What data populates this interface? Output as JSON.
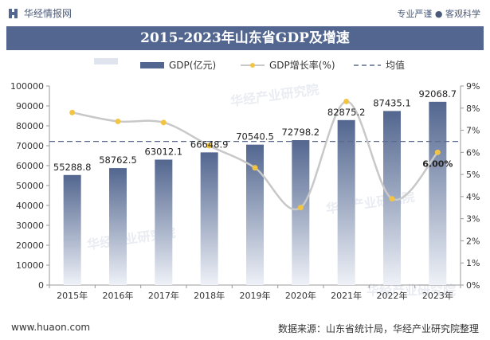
{
  "header": {
    "brand": "华经情报网",
    "tagline": "专业严谨 ● 客观科学"
  },
  "chart_data": {
    "type": "bar",
    "title": "2015-2023年山东省GDP及增速",
    "categories": [
      "2015年",
      "2016年",
      "2017年",
      "2018年",
      "2019年",
      "2020年",
      "2021年",
      "2022年",
      "2023年"
    ],
    "series": [
      {
        "name": "GDP(亿元)",
        "type": "bar",
        "axis": "left",
        "values": [
          55288.8,
          58762.5,
          63012.1,
          66648.9,
          70540.5,
          72798.2,
          82875.2,
          87435.1,
          92068.7
        ],
        "labels": [
          "55288.8",
          "58762.5",
          "63012.1",
          "66648.9",
          "70540.5",
          "72798.2",
          "82875.2",
          "87435.1",
          "92068.7"
        ]
      },
      {
        "name": "GDP增长率(%)",
        "type": "line",
        "axis": "right",
        "smooth": true,
        "values": [
          7.8,
          7.4,
          7.35,
          6.3,
          5.3,
          3.5,
          8.3,
          3.9,
          6.0
        ],
        "highlight_label": "6.00%"
      }
    ],
    "average": {
      "name": "均值",
      "value": 72160
    },
    "y_left": {
      "min": 0,
      "max": 100000,
      "step": 10000,
      "ticks": [
        "0",
        "10000",
        "20000",
        "30000",
        "40000",
        "50000",
        "60000",
        "70000",
        "80000",
        "90000",
        "100000"
      ]
    },
    "y_right": {
      "min": 0,
      "max": 9,
      "step": 1,
      "ticks": [
        "0%",
        "1%",
        "2%",
        "3%",
        "4%",
        "5%",
        "6%",
        "7%",
        "8%",
        "9%"
      ]
    },
    "legend_position": "top",
    "colors": {
      "bar_top": "#52668f",
      "bar_bottom": "#eef1f7",
      "line": "#c8c8c8",
      "marker": "#f2c443",
      "average": "#5a6b8c"
    }
  },
  "watermark": "华经产业研究院",
  "footer": {
    "url": "www.huaon.com",
    "source": "数据来源：山东省统计局，华经产业研究院整理"
  }
}
